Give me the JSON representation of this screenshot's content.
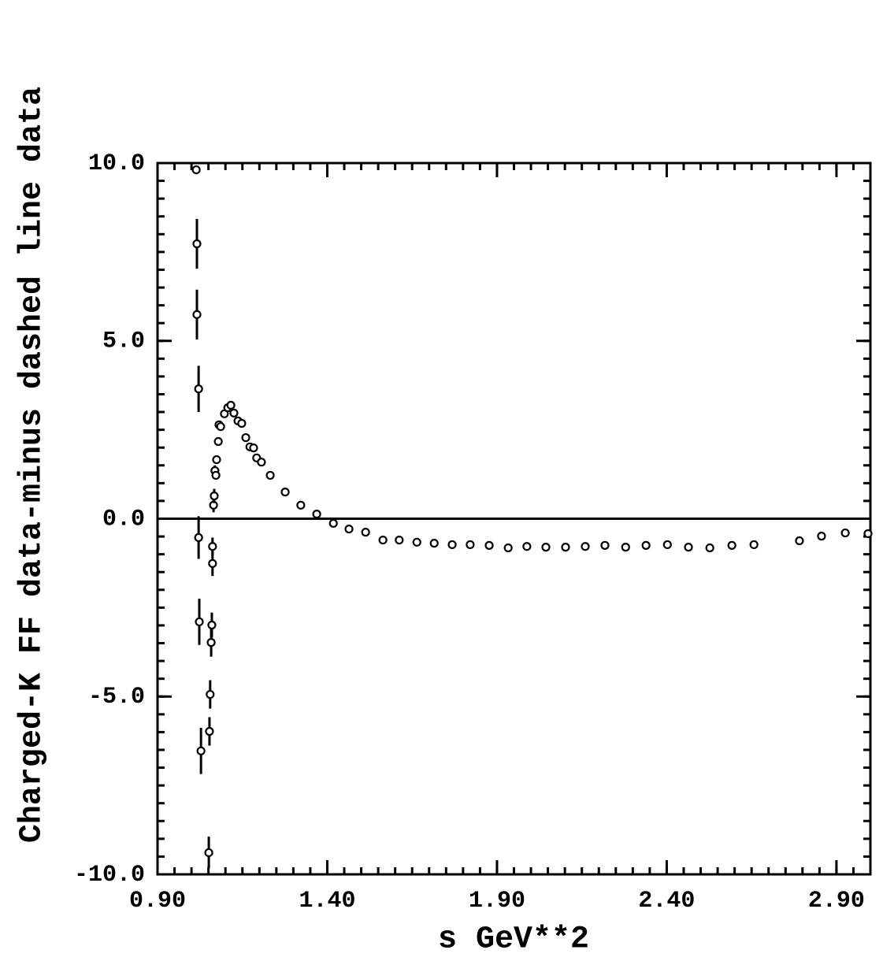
{
  "chart_data": {
    "type": "scatter",
    "x_label": "s GeV**2",
    "y_label": "Charged-K FF data-minus dashed line data",
    "xlim": [
      0.9,
      3.0
    ],
    "ylim": [
      -10,
      10
    ],
    "xticks": [
      {
        "value": 0.9,
        "label": "0.90"
      },
      {
        "value": 1.4,
        "label": "1.40"
      },
      {
        "value": 1.9,
        "label": "1.90"
      },
      {
        "value": 2.4,
        "label": "2.40"
      },
      {
        "value": 2.9,
        "label": "2.90"
      }
    ],
    "yticks": [
      {
        "value": -10,
        "label": "-10.0"
      },
      {
        "value": -5,
        "label": "-5.0"
      },
      {
        "value": 0,
        "label": "0.0"
      },
      {
        "value": 5,
        "label": "5.0"
      },
      {
        "value": 10,
        "label": "10.0"
      }
    ],
    "hline": 0,
    "color": "#000000",
    "series": [
      {
        "x": [
          1.014,
          1.016,
          1.016,
          1.021,
          1.021,
          1.023,
          1.028,
          1.051,
          1.053,
          1.055,
          1.058,
          1.06,
          1.062,
          1.062,
          1.065,
          1.067,
          1.069,
          1.072,
          1.074,
          1.079,
          1.081,
          1.086,
          1.097,
          1.107,
          1.116,
          1.125,
          1.137,
          1.148,
          1.16,
          1.172,
          1.183,
          1.192,
          1.206,
          1.232,
          1.276,
          1.322,
          1.369,
          1.418,
          1.464,
          1.513,
          1.564,
          1.612,
          1.664,
          1.715,
          1.768,
          1.821,
          1.877,
          1.933,
          1.988,
          2.044,
          2.102,
          2.16,
          2.218,
          2.279,
          2.339,
          2.402,
          2.464,
          2.527,
          2.592,
          2.657,
          2.791,
          2.856,
          2.926,
          2.993
        ],
        "values": [
          9.81,
          7.73,
          5.74,
          3.65,
          -0.53,
          -2.9,
          -6.53,
          -9.39,
          -5.98,
          -4.94,
          -3.48,
          -2.99,
          -1.26,
          -0.78,
          0.38,
          0.64,
          1.35,
          1.22,
          1.66,
          2.17,
          2.64,
          2.59,
          2.95,
          3.12,
          3.19,
          2.97,
          2.75,
          2.68,
          2.28,
          2.02,
          1.99,
          1.71,
          1.59,
          1.22,
          0.75,
          0.38,
          0.13,
          -0.13,
          -0.29,
          -0.38,
          -0.6,
          -0.6,
          -0.66,
          -0.69,
          -0.73,
          -0.73,
          -0.75,
          -0.82,
          -0.78,
          -0.8,
          -0.8,
          -0.78,
          -0.75,
          -0.8,
          -0.75,
          -0.73,
          -0.8,
          -0.82,
          -0.75,
          -0.73,
          -0.62,
          -0.49,
          -0.4,
          -0.42
        ],
        "errors": [
          null,
          0.7,
          0.7,
          0.65,
          0.6,
          0.65,
          0.65,
          0.45,
          0.4,
          0.4,
          0.4,
          0.35,
          0.35,
          0.25,
          0.2,
          0.2,
          0.15,
          null,
          null,
          null,
          null,
          null,
          null,
          null,
          null,
          null,
          null,
          null,
          null,
          null,
          null,
          null,
          null,
          null,
          null,
          null,
          null,
          null,
          null,
          null,
          null,
          null,
          null,
          null,
          null,
          null,
          null,
          null,
          null,
          null,
          null,
          null,
          null,
          null,
          null,
          null,
          null,
          null,
          null,
          null,
          null,
          null,
          null,
          null
        ]
      }
    ]
  }
}
